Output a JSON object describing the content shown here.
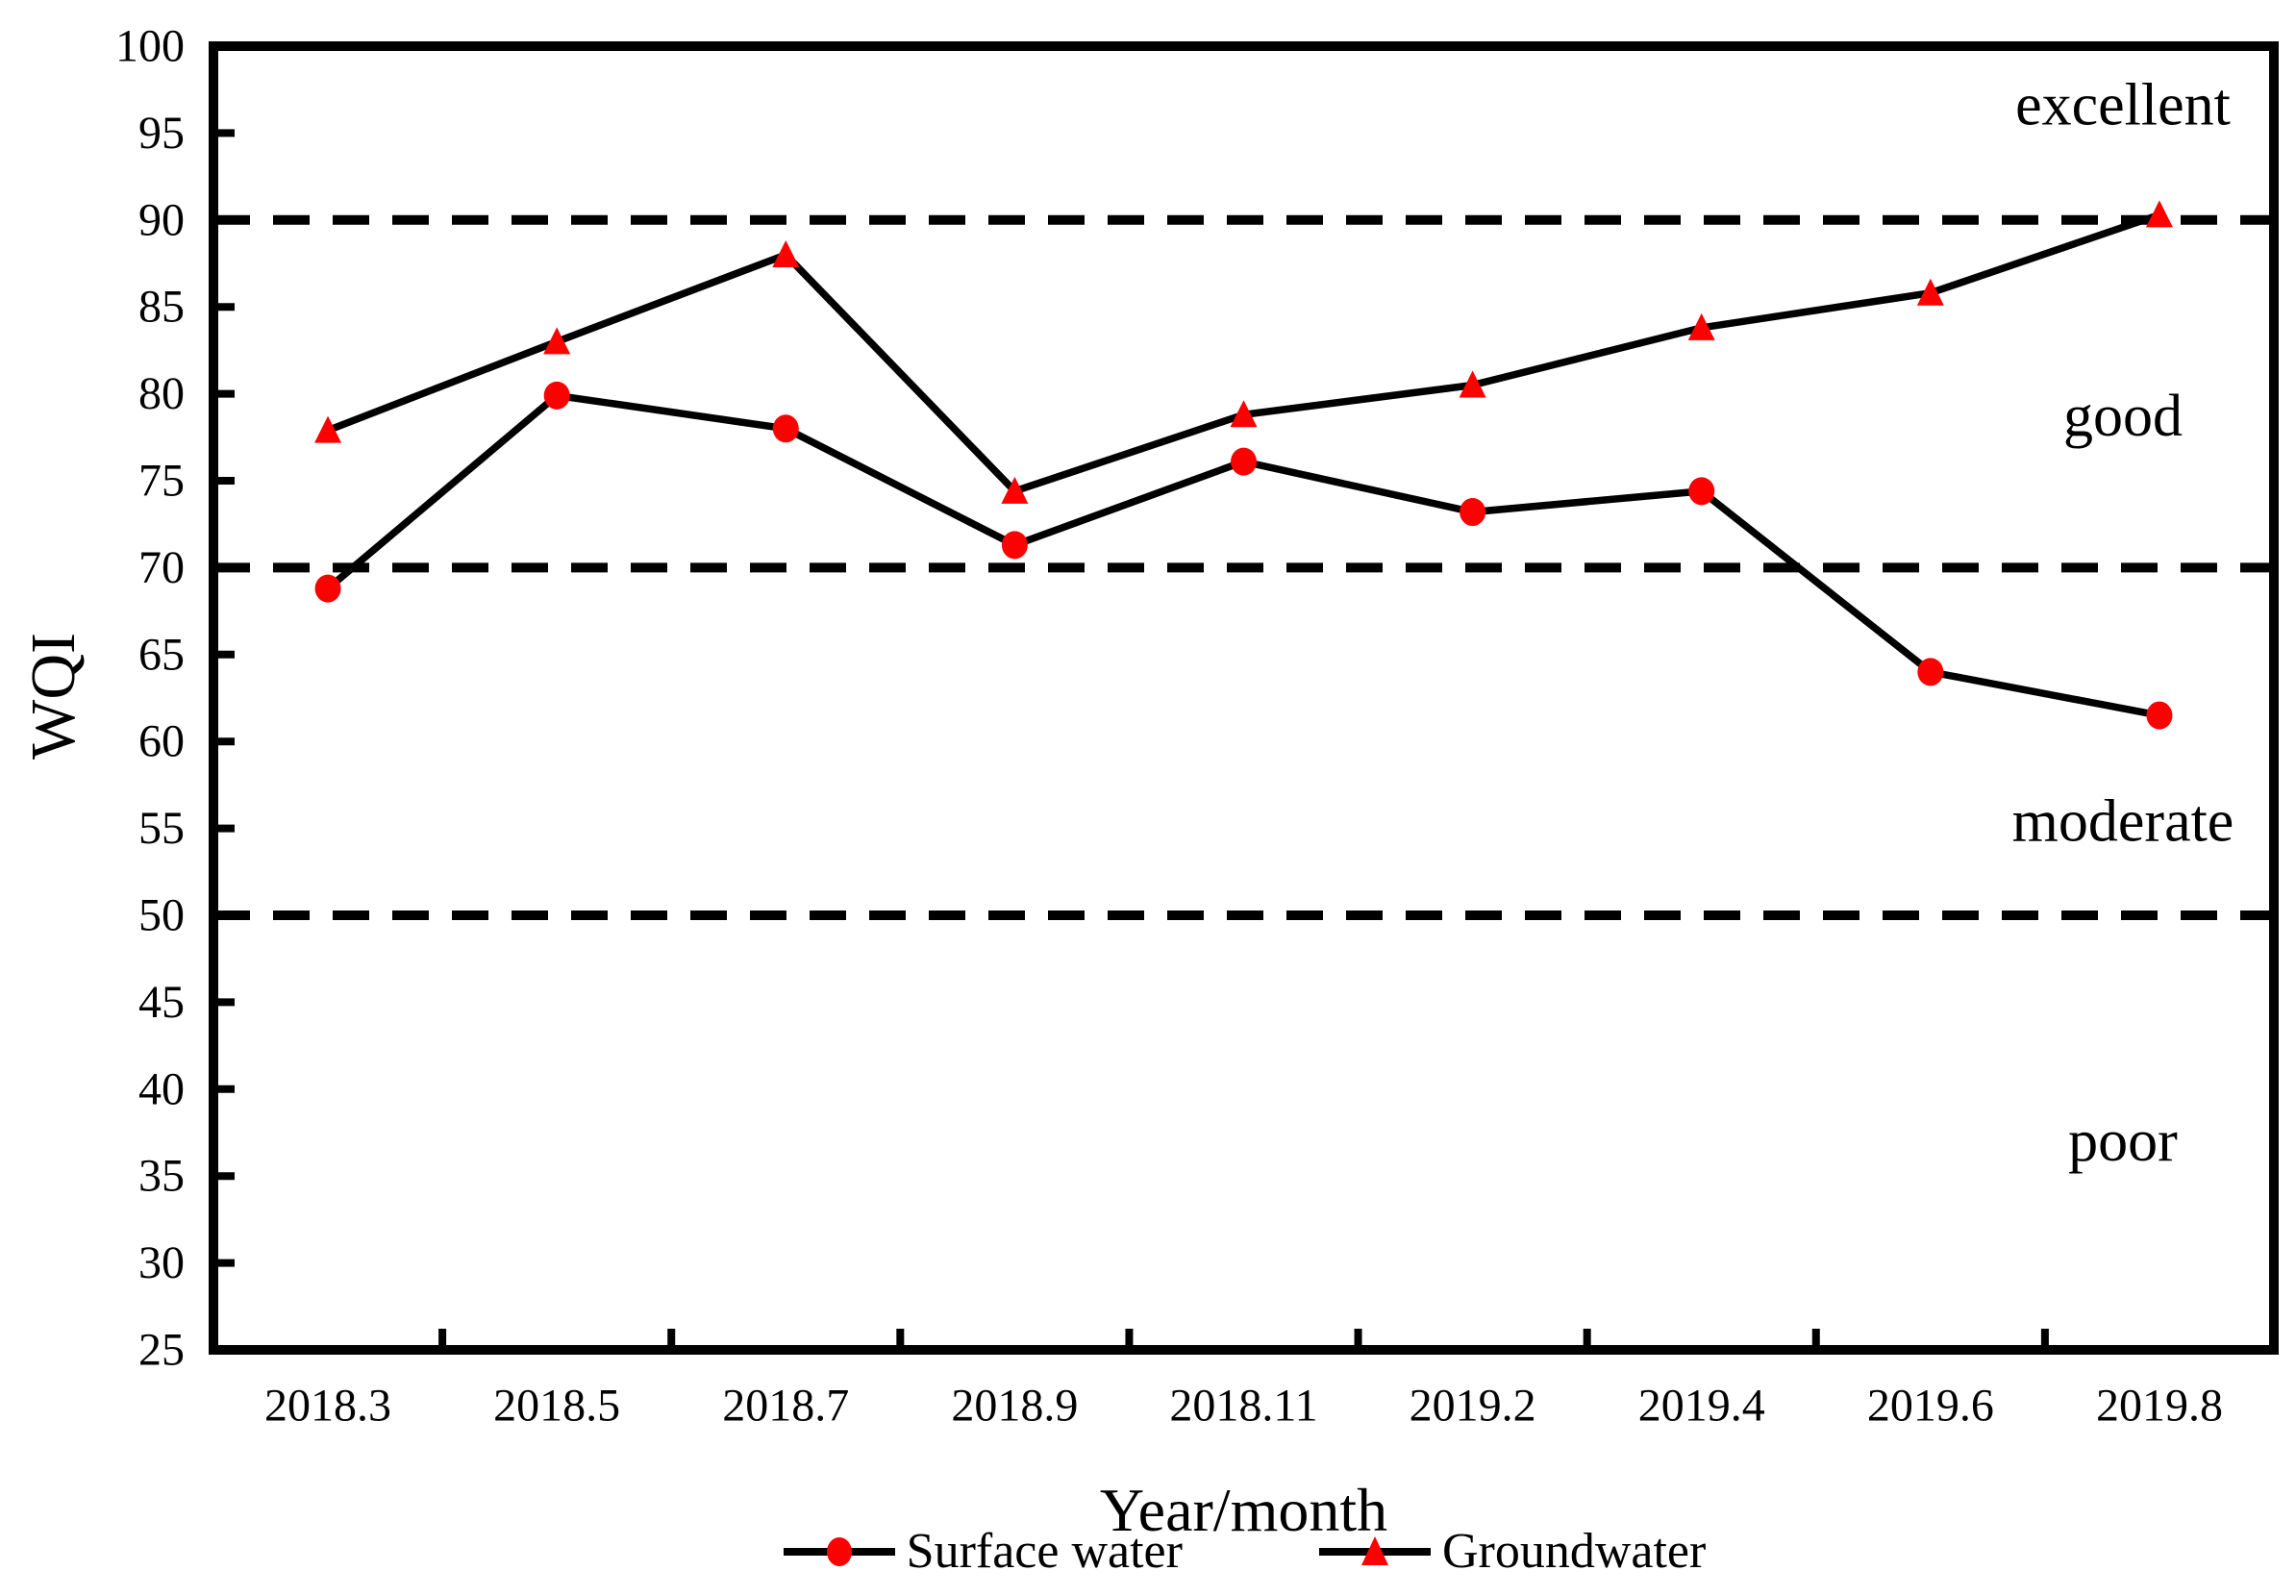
{
  "chart_data": {
    "type": "line",
    "title": "",
    "xlabel": "Year/month",
    "ylabel": "WQI",
    "ylim": [
      25,
      100
    ],
    "ytick_step": 5,
    "ytick_labels": [
      "25",
      "30",
      "35",
      "40",
      "45",
      "50",
      "55",
      "60",
      "65",
      "70",
      "75",
      "80",
      "85",
      "90",
      "95",
      "100"
    ],
    "categories": [
      "2018.3",
      "2018.5",
      "2018.7",
      "2018.9",
      "2018.11",
      "2019.2",
      "2019.4",
      "2019.6",
      "2019.8"
    ],
    "series": [
      {
        "name": "Surface water",
        "marker": "circle",
        "marker_color": "#ff0000",
        "line_color": "#000000",
        "values": [
          68.8,
          79.9,
          78.0,
          71.3,
          76.1,
          73.2,
          74.4,
          64.0,
          61.5
        ]
      },
      {
        "name": "Groundwater",
        "marker": "triangle",
        "marker_color": "#ff0000",
        "line_color": "#000000",
        "values": [
          77.9,
          83.0,
          88.0,
          74.4,
          78.8,
          80.5,
          83.8,
          85.8,
          90.3
        ]
      }
    ],
    "reference_lines": [
      {
        "value": 90,
        "style": "dashed",
        "color": "#000000"
      },
      {
        "value": 70,
        "style": "dashed",
        "color": "#000000"
      },
      {
        "value": 50,
        "style": "dashed",
        "color": "#000000"
      }
    ],
    "region_labels": [
      {
        "text": "excellent",
        "value": 96.6
      },
      {
        "text": "good",
        "value": 78.7
      },
      {
        "text": "moderate",
        "value": 55.4
      },
      {
        "text": "poor",
        "value": 37.0
      }
    ],
    "legend_position": "bottom",
    "grid": false
  },
  "colors": {
    "marker": "#ff0000",
    "line": "#000000",
    "background": "#ffffff"
  }
}
